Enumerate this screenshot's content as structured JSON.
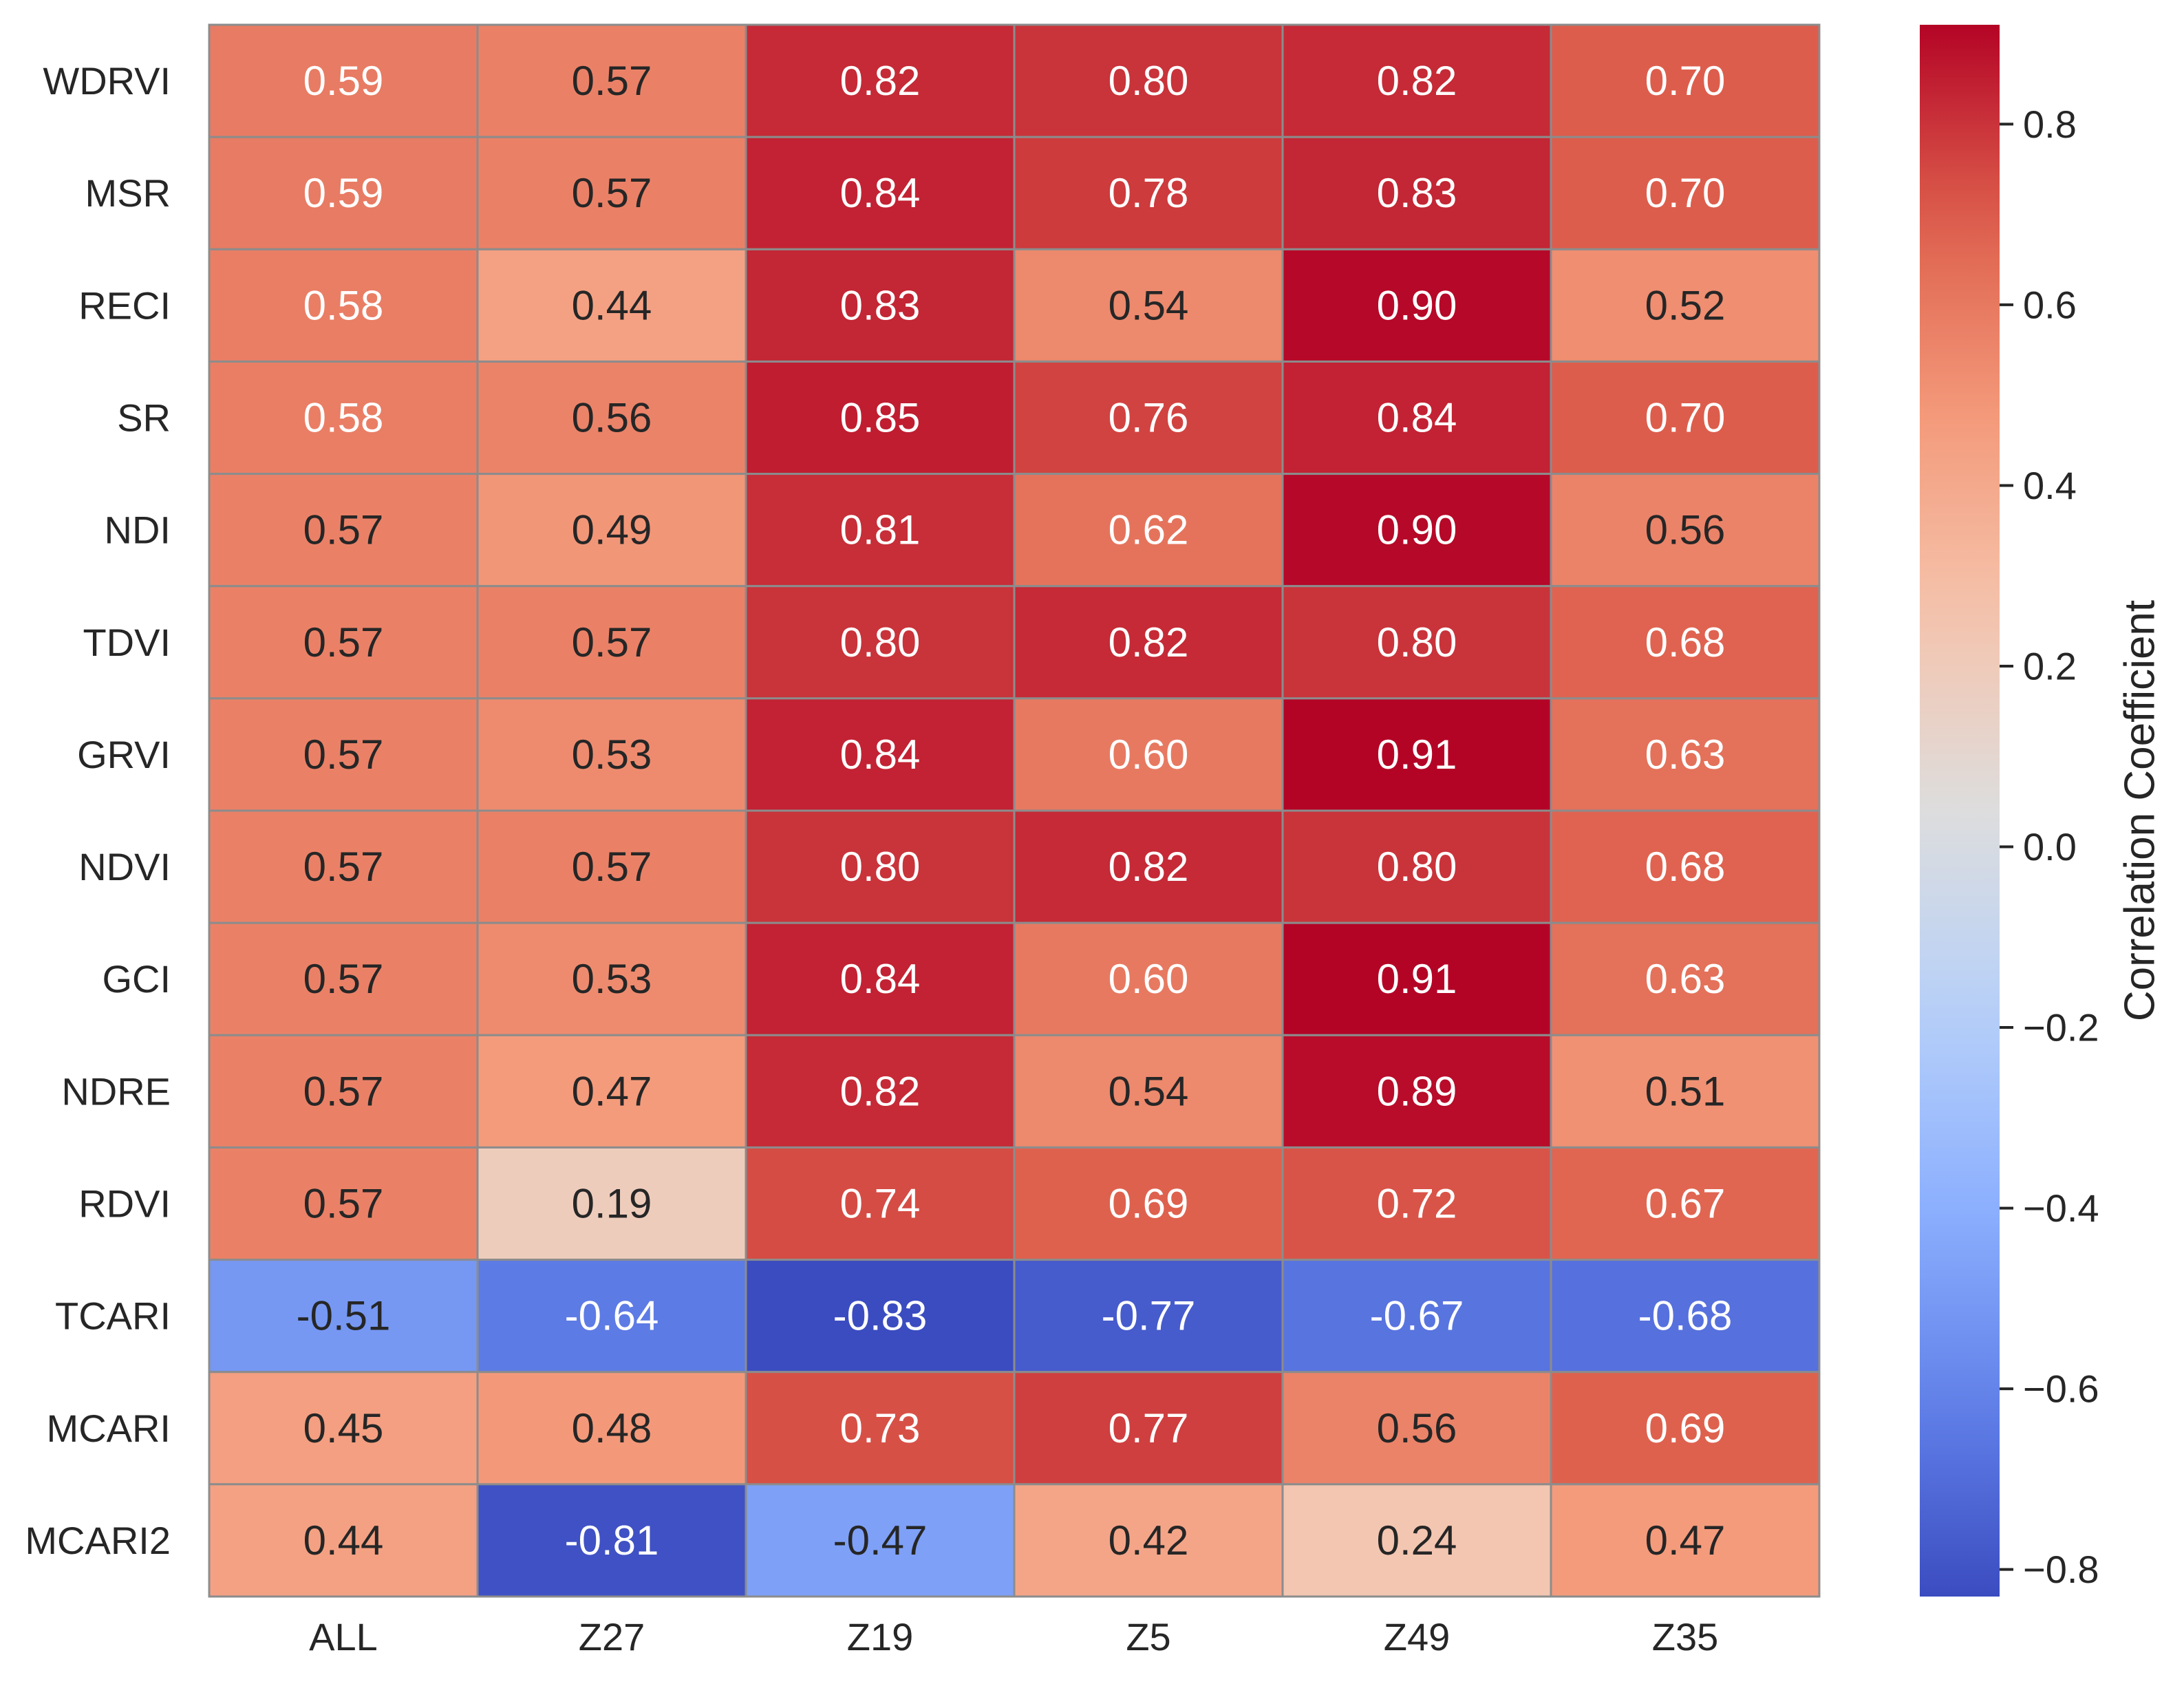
{
  "chart_data": {
    "type": "heatmap",
    "title": "",
    "xlabel": "",
    "ylabel": "",
    "columns": [
      "ALL",
      "Z27",
      "Z19",
      "Z5",
      "Z49",
      "Z35"
    ],
    "rows": [
      "WDRVI",
      "MSR",
      "RECI",
      "SR",
      "NDI",
      "TDVI",
      "GRVI",
      "NDVI",
      "GCI",
      "NDRE",
      "RDVI",
      "TCARI",
      "MCARI",
      "MCARI2"
    ],
    "cell_labels": [
      [
        "0.59",
        "0.57",
        "0.82",
        "0.80",
        "0.82",
        "0.70"
      ],
      [
        "0.59",
        "0.57",
        "0.84",
        "0.78",
        "0.83",
        "0.70"
      ],
      [
        "0.58",
        "0.44",
        "0.83",
        "0.54",
        "0.90",
        "0.52"
      ],
      [
        "0.58",
        "0.56",
        "0.85",
        "0.76",
        "0.84",
        "0.70"
      ],
      [
        "0.57",
        "0.49",
        "0.81",
        "0.62",
        "0.90",
        "0.56"
      ],
      [
        "0.57",
        "0.57",
        "0.80",
        "0.82",
        "0.80",
        "0.68"
      ],
      [
        "0.57",
        "0.53",
        "0.84",
        "0.60",
        "0.91",
        "0.63"
      ],
      [
        "0.57",
        "0.57",
        "0.80",
        "0.82",
        "0.80",
        "0.68"
      ],
      [
        "0.57",
        "0.53",
        "0.84",
        "0.60",
        "0.91",
        "0.63"
      ],
      [
        "0.57",
        "0.47",
        "0.82",
        "0.54",
        "0.89",
        "0.51"
      ],
      [
        "0.57",
        "0.19",
        "0.74",
        "0.69",
        "0.72",
        "0.67"
      ],
      [
        "-0.51",
        "-0.64",
        "-0.83",
        "-0.77",
        "-0.67",
        "-0.68"
      ],
      [
        "0.45",
        "0.48",
        "0.73",
        "0.77",
        "0.56",
        "0.69"
      ],
      [
        "0.44",
        "-0.81",
        "-0.47",
        "0.42",
        "0.24",
        "0.47"
      ]
    ],
    "colormap": "coolwarm",
    "vmin": -0.83,
    "vmax": 0.91,
    "colorbar": {
      "label": "Correlation Coefficient",
      "ticks": [
        0.8,
        0.6,
        0.4,
        0.2,
        0.0,
        -0.2,
        -0.4,
        -0.6,
        -0.8
      ],
      "tick_labels": [
        "0.8",
        "0.6",
        "0.4",
        "0.2",
        "0.0",
        "−0.2",
        "−0.4",
        "−0.6",
        "−0.8"
      ],
      "placement": "right"
    },
    "gridlines": "gray cell borders"
  }
}
